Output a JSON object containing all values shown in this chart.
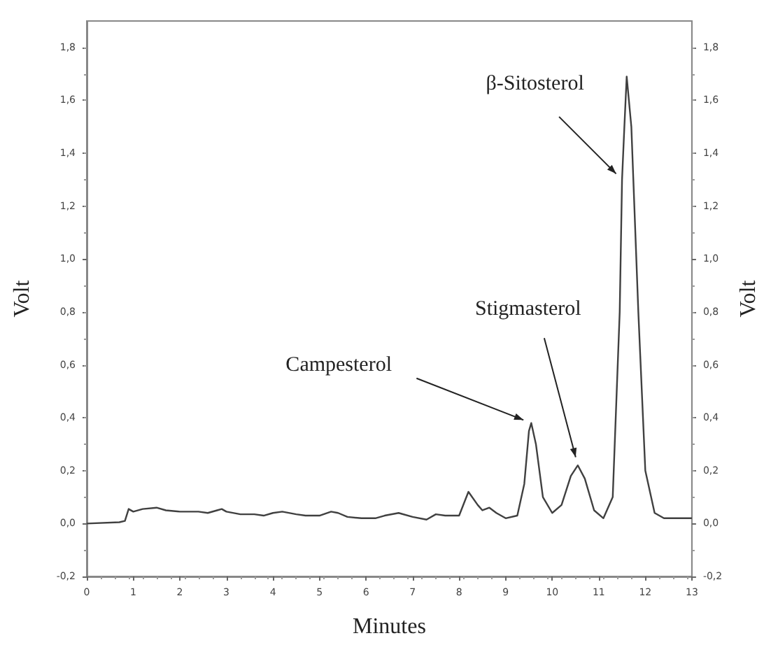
{
  "chart_data": {
    "type": "line",
    "xlabel": "Minutes",
    "ylabel": "Volt",
    "y2label": "Volt",
    "xlim": [
      0,
      13
    ],
    "xticks": [
      0,
      1,
      2,
      3,
      4,
      5,
      6,
      7,
      8,
      9,
      10,
      11,
      12,
      13
    ],
    "ylim": [
      -0.2,
      1.9
    ],
    "yticks": [
      {
        "value": -0.2,
        "label": "-0,2"
      },
      {
        "value": 0,
        "label": "0,0"
      },
      {
        "value": 0.2,
        "label": "0,2"
      },
      {
        "value": 0.4,
        "label": "0,4"
      },
      {
        "value": 0.6,
        "label": "0,6"
      },
      {
        "value": 0.8,
        "label": "0,8"
      },
      {
        "value": 1,
        "label": "1,0"
      },
      {
        "value": 1.2,
        "label": "1,2"
      },
      {
        "value": 1.4,
        "label": "1,4"
      },
      {
        "value": 1.6,
        "label": "1,6"
      },
      {
        "value": 1.8,
        "label": "1,8"
      }
    ],
    "y2lim": [
      -0.2,
      1.9
    ],
    "y2ticks": [
      {
        "value": -0.2,
        "label": "-0,2"
      },
      {
        "value": 0,
        "label": "0,0"
      },
      {
        "value": 0.2,
        "label": "0,2"
      },
      {
        "value": 0.4,
        "label": "0,4"
      },
      {
        "value": 0.6,
        "label": "0,6"
      },
      {
        "value": 0.8,
        "label": "0,8"
      },
      {
        "value": 1,
        "label": "1,0"
      },
      {
        "value": 1.2,
        "label": "1,2"
      },
      {
        "value": 1.4,
        "label": "1,4"
      },
      {
        "value": 1.6,
        "label": "1,6"
      },
      {
        "value": 1.8,
        "label": "1,8"
      }
    ],
    "grid": false,
    "marker": "none",
    "line_style": "solid",
    "x": [
      0,
      0.7,
      0.82,
      0.9,
      1.0,
      1.2,
      1.5,
      1.7,
      2.0,
      2.4,
      2.6,
      2.8,
      2.9,
      3.0,
      3.3,
      3.6,
      3.8,
      4.0,
      4.2,
      4.5,
      4.7,
      5.0,
      5.25,
      5.4,
      5.6,
      5.9,
      6.2,
      6.4,
      6.7,
      7.0,
      7.3,
      7.5,
      7.7,
      8.0,
      8.2,
      8.4,
      8.5,
      8.65,
      8.8,
      9.0,
      9.25,
      9.4,
      9.5,
      9.55,
      9.65,
      9.8,
      10.0,
      10.2,
      10.4,
      10.55,
      10.7,
      10.9,
      11.1,
      11.3,
      11.45,
      11.5,
      11.55,
      11.6,
      11.7,
      11.85,
      12.0,
      12.2,
      12.4,
      13
    ],
    "series": [
      {
        "color": "#404040",
        "values": [
          0.0,
          0.005,
          0.01,
          0.055,
          0.045,
          0.055,
          0.06,
          0.05,
          0.045,
          0.045,
          0.04,
          0.05,
          0.055,
          0.045,
          0.035,
          0.035,
          0.03,
          0.04,
          0.045,
          0.035,
          0.03,
          0.03,
          0.045,
          0.04,
          0.025,
          0.02,
          0.02,
          0.03,
          0.04,
          0.025,
          0.015,
          0.035,
          0.03,
          0.03,
          0.12,
          0.07,
          0.05,
          0.06,
          0.04,
          0.02,
          0.03,
          0.15,
          0.35,
          0.38,
          0.3,
          0.1,
          0.04,
          0.07,
          0.18,
          0.22,
          0.17,
          0.05,
          0.02,
          0.1,
          0.8,
          1.3,
          1.5,
          1.69,
          1.5,
          0.8,
          0.2,
          0.04,
          0.02,
          0.02
        ]
      }
    ],
    "annotations": [
      {
        "text": "Campesterol",
        "x": 9.55,
        "y": 0.38
      },
      {
        "text": "Stigmasterol",
        "x": 10.55,
        "y": 0.22
      },
      {
        "text": "β-Sitosterol",
        "x": 11.5,
        "y": 1.3
      }
    ]
  }
}
